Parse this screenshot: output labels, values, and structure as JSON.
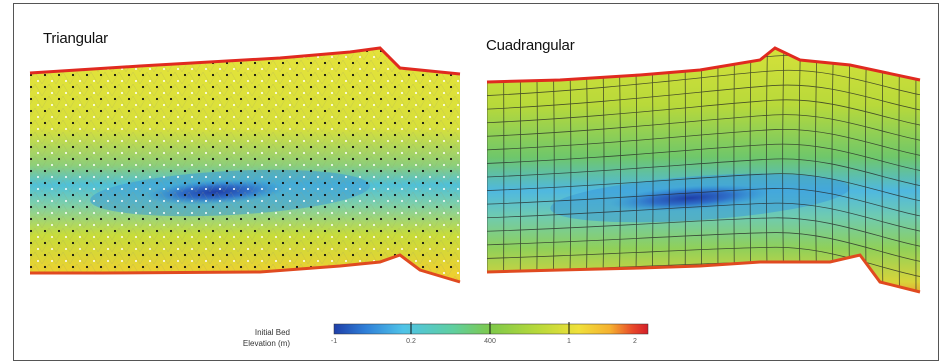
{
  "panels": {
    "left_title": "Triangular",
    "right_title": "Cuadrangular"
  },
  "legend": {
    "label_line1": "Initial Bed",
    "label_line2": "Elevation (m)",
    "tick_labels": [
      "-1",
      "0.2",
      "400",
      "1",
      "2"
    ],
    "colors": [
      "#1f3fa8",
      "#2f7fd8",
      "#4fc3e8",
      "#5fcf9f",
      "#7fc94a",
      "#b8d93a",
      "#f0e03a",
      "#f5b030",
      "#e84a2a",
      "#d41e2a"
    ]
  }
}
